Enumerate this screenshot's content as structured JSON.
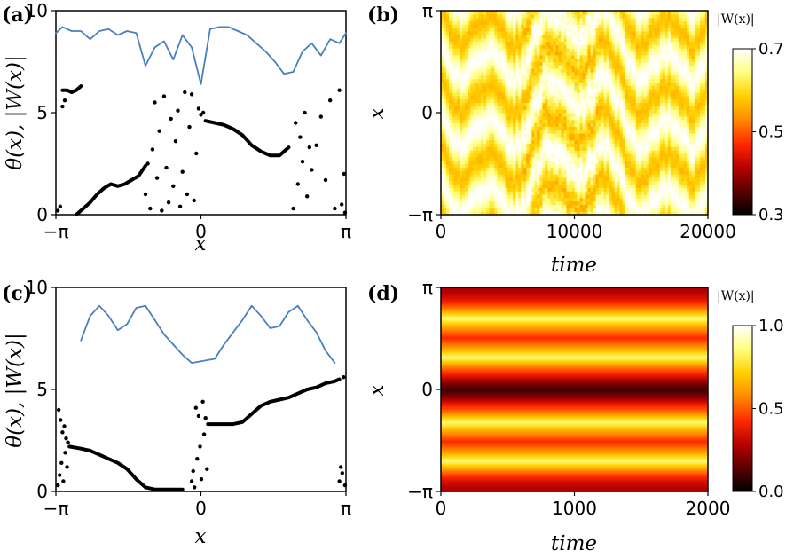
{
  "chart_data": [
    {
      "id": "a",
      "panel_label": "(a)",
      "type": "line",
      "xlabel": "x",
      "ylabel": "θ(x), |W(x)|",
      "xlim": [
        -3.14159,
        3.14159
      ],
      "ylim": [
        0,
        10
      ],
      "x_ticks": [
        "−π",
        "0",
        "π"
      ],
      "y_ticks": [
        "0",
        "5",
        "10"
      ],
      "series": [
        {
          "name": "|W(x)|",
          "color": "#4a7fbf",
          "x": [
            -3.14,
            -3.0,
            -2.8,
            -2.6,
            -2.4,
            -2.2,
            -2.0,
            -1.8,
            -1.6,
            -1.4,
            -1.2,
            -1.0,
            -0.8,
            -0.6,
            -0.4,
            -0.2,
            0.0,
            0.2,
            0.4,
            0.6,
            0.8,
            1.0,
            1.2,
            1.4,
            1.6,
            1.8,
            2.0,
            2.2,
            2.4,
            2.6,
            2.8,
            3.0,
            3.14
          ],
          "y": [
            8.9,
            9.2,
            9.0,
            9.0,
            8.6,
            9.0,
            9.1,
            8.8,
            9.0,
            8.9,
            7.3,
            8.2,
            8.5,
            7.6,
            8.8,
            8.2,
            6.4,
            9.1,
            9.2,
            9.2,
            9.0,
            8.8,
            8.4,
            8.0,
            7.5,
            6.9,
            7.0,
            8.0,
            8.4,
            7.8,
            8.6,
            8.4,
            8.9
          ]
        },
        {
          "name": "θ(x) (branch 1)",
          "color": "#000000",
          "x": [
            -3.0,
            -2.9,
            -2.8,
            -2.7,
            -2.6
          ],
          "y": [
            6.1,
            6.1,
            6.0,
            6.1,
            6.3
          ]
        },
        {
          "name": "θ(x) (branch 2)",
          "color": "#000000",
          "x": [
            -2.7,
            -2.55,
            -2.4,
            -2.25,
            -2.1,
            -1.95,
            -1.8,
            -1.65,
            -1.5,
            -1.35,
            -1.2
          ],
          "y": [
            0.0,
            0.3,
            0.6,
            1.0,
            1.3,
            1.5,
            1.4,
            1.5,
            1.7,
            1.9,
            2.4
          ]
        },
        {
          "name": "θ(x) (branch 3)",
          "color": "#000000",
          "x": [
            0.1,
            0.3,
            0.5,
            0.7,
            0.9,
            1.1,
            1.3,
            1.5,
            1.7,
            1.9
          ],
          "y": [
            4.6,
            4.5,
            4.4,
            4.2,
            3.9,
            3.4,
            3.1,
            2.9,
            2.9,
            3.3
          ]
        }
      ],
      "scatter": {
        "name": "θ(x) (scattered)",
        "color": "#000000",
        "x": [
          -3.1,
          -3.05,
          -3.0,
          -2.95,
          -1.2,
          -1.15,
          -1.1,
          -1.05,
          -1.0,
          -0.95,
          -0.9,
          -0.85,
          -0.8,
          -0.75,
          -0.7,
          -0.65,
          -0.6,
          -0.55,
          -0.5,
          -0.45,
          -0.4,
          -0.35,
          -0.3,
          -0.25,
          -0.2,
          -0.15,
          -0.1,
          -0.05,
          0.0,
          0.05,
          2.0,
          2.05,
          2.1,
          2.15,
          2.2,
          2.25,
          2.3,
          2.35,
          2.4,
          2.5,
          2.6,
          2.7,
          2.8,
          2.9,
          3.0,
          3.05,
          3.1,
          3.12
        ],
        "y": [
          0.2,
          0.4,
          5.3,
          5.6,
          1.0,
          2.5,
          0.3,
          3.2,
          5.5,
          1.8,
          4.1,
          0.2,
          5.8,
          2.3,
          0.6,
          4.7,
          1.4,
          3.6,
          5.1,
          0.4,
          2.1,
          6.0,
          1.0,
          4.3,
          5.9,
          0.7,
          3.0,
          5.2,
          4.9,
          5.0,
          0.3,
          4.5,
          1.5,
          3.8,
          2.6,
          5.0,
          0.9,
          3.3,
          2.2,
          3.4,
          4.8,
          1.7,
          5.6,
          0.3,
          6.1,
          0.5,
          2.0,
          0.1
        ]
      }
    },
    {
      "id": "b",
      "panel_label": "(b)",
      "type": "heatmap",
      "xlabel": "time",
      "ylabel": "x",
      "xlim": [
        0,
        20000
      ],
      "ylim": [
        -3.14159,
        3.14159
      ],
      "x_ticks": [
        "0",
        "10000",
        "20000"
      ],
      "y_ticks": [
        "−π",
        "0",
        "π"
      ],
      "colorbar": {
        "label": "|W(x)|",
        "ticks": [
          "0.3",
          "0.5",
          "0.7"
        ],
        "range": [
          0.3,
          0.7
        ],
        "colormap": [
          "#000000",
          "#5a0000",
          "#b80000",
          "#ff2a00",
          "#ff8a00",
          "#ffd000",
          "#ffff80",
          "#ffffff"
        ]
      },
      "description_values": {
        "dominant_range": [
          0.55,
          0.7
        ],
        "pattern": "wavy orange-yellow stripes with irregular time dependence"
      }
    },
    {
      "id": "c",
      "panel_label": "(c)",
      "type": "line",
      "xlabel": "x",
      "ylabel": "θ(x), |W(x)|",
      "xlim": [
        -3.14159,
        3.14159
      ],
      "ylim": [
        0,
        10
      ],
      "x_ticks": [
        "−π",
        "0",
        "π"
      ],
      "y_ticks": [
        "0",
        "5",
        "10"
      ],
      "series": [
        {
          "name": "|W(x)|",
          "color": "#4a7fbf",
          "x": [
            -2.6,
            -2.4,
            -2.2,
            -2.0,
            -1.8,
            -1.6,
            -1.4,
            -1.2,
            -1.0,
            -0.8,
            -0.6,
            -0.4,
            -0.2,
            0.3,
            0.5,
            0.7,
            0.9,
            1.1,
            1.3,
            1.5,
            1.7,
            1.9,
            2.1,
            2.3,
            2.5,
            2.7,
            2.9
          ],
          "y": [
            7.4,
            8.6,
            9.1,
            8.6,
            7.9,
            8.2,
            9.0,
            9.1,
            8.4,
            7.7,
            7.2,
            6.7,
            6.3,
            6.5,
            7.2,
            7.8,
            8.4,
            9.1,
            8.6,
            8.0,
            8.1,
            8.8,
            9.1,
            8.4,
            7.8,
            6.9,
            6.3
          ]
        },
        {
          "name": "θ(x) (branch 1)",
          "color": "#000000",
          "x": [
            -2.85,
            -2.6,
            -2.4,
            -2.2,
            -2.0,
            -1.8,
            -1.6,
            -1.4,
            -1.2,
            -1.0,
            -0.8,
            -0.6,
            -0.4
          ],
          "y": [
            2.2,
            2.1,
            2.0,
            1.8,
            1.6,
            1.4,
            1.1,
            0.6,
            0.2,
            0.1,
            0.1,
            0.1,
            0.1
          ]
        },
        {
          "name": "θ(x) (branch 2)",
          "color": "#000000",
          "x": [
            0.15,
            0.4,
            0.7,
            0.9,
            1.1,
            1.3,
            1.5,
            1.7,
            1.9,
            2.1,
            2.3,
            2.5,
            2.7,
            2.9,
            3.0
          ],
          "y": [
            3.3,
            3.3,
            3.3,
            3.4,
            3.8,
            4.2,
            4.4,
            4.5,
            4.6,
            4.8,
            5.0,
            5.1,
            5.3,
            5.4,
            5.5
          ]
        }
      ],
      "scatter": {
        "name": "θ(x) (scattered)",
        "color": "#000000",
        "x": [
          -3.1,
          -3.08,
          -3.06,
          -3.04,
          -3.02,
          -3.0,
          -2.98,
          -2.96,
          -2.94,
          -2.92,
          -2.9,
          -2.88,
          -0.2,
          -0.17,
          -0.14,
          -0.11,
          -0.08,
          -0.05,
          -0.02,
          0.01,
          0.04,
          0.07,
          0.1,
          0.13,
          3.0,
          3.03,
          3.06,
          3.09,
          3.12
        ],
        "y": [
          0.3,
          4.0,
          0.8,
          3.5,
          1.4,
          2.9,
          0.5,
          3.2,
          1.9,
          2.6,
          1.2,
          2.4,
          0.5,
          1.0,
          0.2,
          4.1,
          1.6,
          3.7,
          2.2,
          0.6,
          4.4,
          2.8,
          3.6,
          1.1,
          0.5,
          1.2,
          0.9,
          5.6,
          0.3
        ]
      }
    },
    {
      "id": "d",
      "panel_label": "(d)",
      "type": "heatmap",
      "xlabel": "time",
      "ylabel": "x",
      "xlim": [
        0,
        2000
      ],
      "ylim": [
        -3.14159,
        3.14159
      ],
      "x_ticks": [
        "0",
        "1000",
        "2000"
      ],
      "y_ticks": [
        "−π",
        "0",
        "π"
      ],
      "colorbar": {
        "label": "|W(x)|",
        "ticks": [
          "0.0",
          "0.5",
          "1.0"
        ],
        "range": [
          0.0,
          1.0
        ],
        "colormap": [
          "#000000",
          "#5a0000",
          "#b80000",
          "#ff2a00",
          "#ff8a00",
          "#ffd000",
          "#ffff80",
          "#ffffff"
        ]
      },
      "stationary_profile_x": [
        -3.14,
        -2.8,
        -2.5,
        -2.2,
        -1.9,
        -1.6,
        -1.3,
        -1.0,
        -0.7,
        -0.4,
        -0.2,
        0.0,
        0.2,
        0.4,
        0.7,
        1.0,
        1.3,
        1.6,
        1.9,
        2.2,
        2.5,
        2.8,
        3.14
      ],
      "stationary_profile_w": [
        0.25,
        0.35,
        0.55,
        0.85,
        0.6,
        0.42,
        0.6,
        0.85,
        0.55,
        0.35,
        0.2,
        0.1,
        0.2,
        0.35,
        0.55,
        0.85,
        0.6,
        0.42,
        0.6,
        0.85,
        0.55,
        0.35,
        0.25
      ]
    }
  ]
}
